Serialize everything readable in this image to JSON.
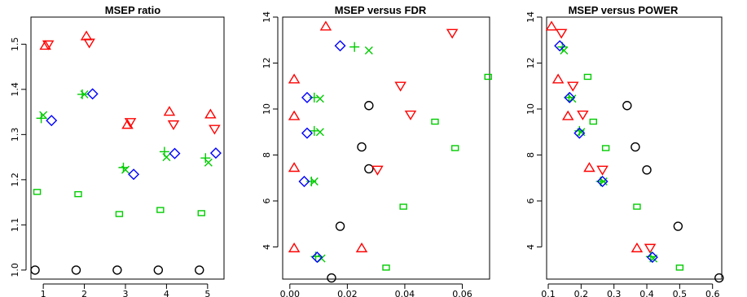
{
  "chart_data": [
    {
      "type": "scatter",
      "title": "MSEP ratio",
      "xlim": [
        0.7,
        5.4
      ],
      "ylim": [
        0.98,
        1.56
      ],
      "xticks": [
        1,
        2,
        3,
        4,
        5
      ],
      "yticks": [
        1.0,
        1.1,
        1.2,
        1.3,
        1.4,
        1.5
      ],
      "ytick_labels": [
        "1.0",
        "1.1",
        "1.2",
        "1.3",
        "1.4",
        "1.5"
      ],
      "y_tick_rotation": -90,
      "series": [
        {
          "marker": "circle",
          "color": "#000000",
          "points": [
            [
              0.8,
              1.0
            ],
            [
              1.8,
              1.0
            ],
            [
              2.8,
              1.0
            ],
            [
              3.8,
              1.0
            ],
            [
              4.8,
              1.0
            ]
          ]
        },
        {
          "marker": "triangle-up",
          "color": "#ff0000",
          "points": [
            [
              1.05,
              1.497
            ],
            [
              2.05,
              1.518
            ],
            [
              3.05,
              1.322
            ],
            [
              4.07,
              1.351
            ],
            [
              5.07,
              1.345
            ]
          ]
        },
        {
          "marker": "triangle-down",
          "color": "#ff0000",
          "points": [
            [
              1.12,
              1.499
            ],
            [
              2.12,
              1.503
            ],
            [
              3.12,
              1.327
            ],
            [
              4.17,
              1.322
            ],
            [
              5.17,
              1.312
            ]
          ]
        },
        {
          "marker": "plus",
          "color": "#00cc00",
          "points": [
            [
              0.95,
              1.336
            ],
            [
              1.95,
              1.389
            ],
            [
              2.95,
              1.227
            ],
            [
              3.95,
              1.262
            ],
            [
              4.95,
              1.248
            ]
          ]
        },
        {
          "marker": "cross",
          "color": "#00cc00",
          "points": [
            [
              1.0,
              1.343
            ],
            [
              2.0,
              1.389
            ],
            [
              3.0,
              1.222
            ],
            [
              4.0,
              1.25
            ],
            [
              5.02,
              1.238
            ]
          ]
        },
        {
          "marker": "diamond",
          "color": "#0000ff",
          "points": [
            [
              1.2,
              1.331
            ],
            [
              2.2,
              1.39
            ],
            [
              3.2,
              1.212
            ],
            [
              4.2,
              1.258
            ],
            [
              5.2,
              1.259
            ]
          ]
        },
        {
          "marker": "square",
          "color": "#00cc00",
          "points": [
            [
              0.85,
              1.173
            ],
            [
              1.85,
              1.168
            ],
            [
              2.85,
              1.124
            ],
            [
              3.85,
              1.133
            ],
            [
              4.85,
              1.126
            ]
          ]
        }
      ]
    },
    {
      "type": "scatter",
      "title": "MSEP versus FDR",
      "xlim": [
        -0.0025,
        0.0695
      ],
      "ylim": [
        2.6,
        14.0
      ],
      "xticks": [
        0.0,
        0.02,
        0.04,
        0.06
      ],
      "xtick_labels": [
        "0.00",
        "0.02",
        "0.04",
        "0.06"
      ],
      "yticks": [
        4,
        6,
        8,
        10,
        12,
        14
      ],
      "ytick_labels": [
        "4",
        "6",
        "8",
        "10",
        "12",
        "14"
      ],
      "y_tick_rotation": -90,
      "series": [
        {
          "marker": "circle",
          "color": "#000000",
          "points": [
            [
              0.0275,
              10.15
            ],
            [
              0.025,
              8.35
            ],
            [
              0.0275,
              7.4
            ],
            [
              0.0175,
              4.9
            ],
            [
              0.0145,
              2.65
            ]
          ]
        },
        {
          "marker": "triangle-up",
          "color": "#ff0000",
          "points": [
            [
              0.0125,
              13.6
            ],
            [
              0.0015,
              11.3
            ],
            [
              0.0015,
              9.7
            ],
            [
              0.0015,
              7.45
            ],
            [
              0.0015,
              3.95
            ],
            [
              0.025,
              3.95
            ]
          ]
        },
        {
          "marker": "triangle-down",
          "color": "#ff0000",
          "points": [
            [
              0.0565,
              13.3
            ],
            [
              0.0385,
              11.0
            ],
            [
              0.042,
              9.75
            ],
            [
              0.0305,
              7.35
            ]
          ]
        },
        {
          "marker": "plus",
          "color": "#00cc00",
          "points": [
            [
              0.0225,
              12.7
            ],
            [
              0.0085,
              10.5
            ],
            [
              0.0085,
              9.05
            ],
            [
              0.0075,
              6.85
            ],
            [
              0.009,
              3.58
            ]
          ]
        },
        {
          "marker": "cross",
          "color": "#00cc00",
          "points": [
            [
              0.0275,
              12.55
            ],
            [
              0.0105,
              10.45
            ],
            [
              0.0105,
              9.0
            ],
            [
              0.0085,
              6.85
            ],
            [
              0.011,
              3.5
            ]
          ]
        },
        {
          "marker": "diamond",
          "color": "#0000ff",
          "points": [
            [
              0.0175,
              12.75
            ],
            [
              0.006,
              10.5
            ],
            [
              0.006,
              8.95
            ],
            [
              0.005,
              6.85
            ],
            [
              0.0095,
              3.55
            ]
          ]
        },
        {
          "marker": "square",
          "color": "#00cc00",
          "points": [
            [
              0.069,
              11.4
            ],
            [
              0.0505,
              9.45
            ],
            [
              0.0575,
              8.3
            ],
            [
              0.0395,
              5.75
            ],
            [
              0.0335,
              3.1
            ]
          ]
        }
      ]
    },
    {
      "type": "scatter",
      "title": "MSEP versus POWER",
      "xlim": [
        0.095,
        0.628
      ],
      "ylim": [
        2.6,
        14.0
      ],
      "xticks": [
        0.1,
        0.2,
        0.3,
        0.4,
        0.5,
        0.6
      ],
      "xtick_labels": [
        "0.1",
        "0.2",
        "0.3",
        "0.4",
        "0.5",
        "0.6"
      ],
      "yticks": [
        4,
        6,
        8,
        10,
        12,
        14
      ],
      "ytick_labels": [
        "4",
        "6",
        "8",
        "10",
        "12",
        "14"
      ],
      "y_tick_rotation": -90,
      "series": [
        {
          "marker": "circle",
          "color": "#000000",
          "points": [
            [
              0.34,
              10.15
            ],
            [
              0.365,
              8.35
            ],
            [
              0.4,
              7.35
            ],
            [
              0.495,
              4.9
            ],
            [
              0.62,
              2.65
            ]
          ]
        },
        {
          "marker": "triangle-up",
          "color": "#ff0000",
          "points": [
            [
              0.11,
              13.6
            ],
            [
              0.13,
              11.3
            ],
            [
              0.16,
              9.7
            ],
            [
              0.225,
              7.45
            ],
            [
              0.37,
              3.95
            ]
          ]
        },
        {
          "marker": "triangle-down",
          "color": "#ff0000",
          "points": [
            [
              0.14,
              13.3
            ],
            [
              0.175,
              11.0
            ],
            [
              0.205,
              9.75
            ],
            [
              0.265,
              7.35
            ],
            [
              0.41,
              3.95
            ]
          ]
        },
        {
          "marker": "plus",
          "color": "#00cc00",
          "points": [
            [
              0.143,
              12.7
            ],
            [
              0.163,
              10.5
            ],
            [
              0.195,
              9.05
            ],
            [
              0.26,
              6.85
            ],
            [
              0.412,
              3.58
            ]
          ]
        },
        {
          "marker": "cross",
          "color": "#00cc00",
          "points": [
            [
              0.148,
              12.55
            ],
            [
              0.173,
              10.45
            ],
            [
              0.2,
              9.0
            ],
            [
              0.268,
              6.85
            ],
            [
              0.42,
              3.5
            ]
          ]
        },
        {
          "marker": "diamond",
          "color": "#0000ff",
          "points": [
            [
              0.135,
              12.75
            ],
            [
              0.165,
              10.5
            ],
            [
              0.195,
              8.95
            ],
            [
              0.265,
              6.85
            ],
            [
              0.417,
              3.55
            ]
          ]
        },
        {
          "marker": "square",
          "color": "#00cc00",
          "points": [
            [
              0.22,
              11.4
            ],
            [
              0.237,
              9.45
            ],
            [
              0.275,
              8.3
            ],
            [
              0.37,
              5.75
            ],
            [
              0.5,
              3.1
            ]
          ]
        }
      ]
    }
  ]
}
